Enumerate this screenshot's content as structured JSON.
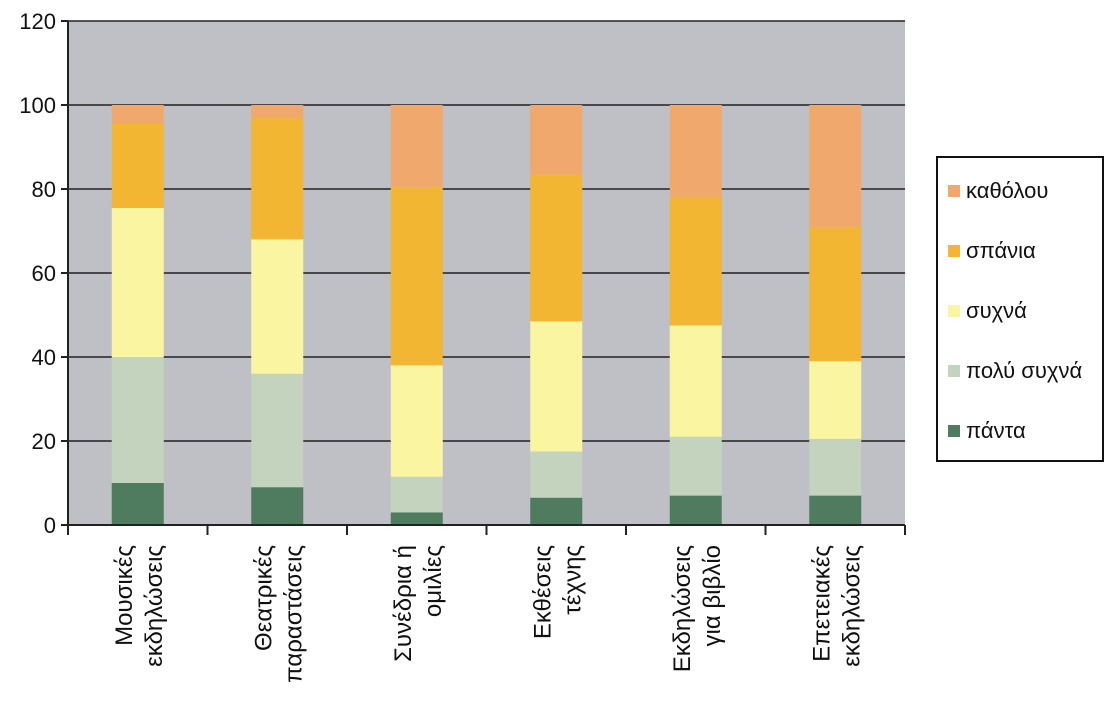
{
  "chart_data": {
    "type": "bar",
    "stacked": true,
    "categories": [
      [
        "Μουσικές",
        "εκδηλώσεις"
      ],
      [
        "Θεατρικές",
        "παραστάσεις"
      ],
      [
        "Συνέδρια ή",
        "ομιλίες"
      ],
      [
        "Εκθέσεις",
        "τέχνης"
      ],
      [
        "Εκδηλώσεις",
        "για βιβλίο"
      ],
      [
        "Επετειακές",
        "εκδηλώσεις"
      ]
    ],
    "series": [
      {
        "name": "πάντα",
        "color": "#4f7b5e",
        "values": [
          10,
          9,
          3,
          6.5,
          7,
          7
        ]
      },
      {
        "name": "πολύ συχνά",
        "color": "#c3d3bd",
        "values": [
          30,
          27,
          8.5,
          11,
          14,
          13.5
        ]
      },
      {
        "name": "συχνά",
        "color": "#faf5a0",
        "values": [
          35.5,
          32,
          26.5,
          31,
          26.5,
          18.5
        ]
      },
      {
        "name": "σπάνια",
        "color": "#f2b632",
        "values": [
          20,
          29,
          42.5,
          35,
          30.5,
          32
        ]
      },
      {
        "name": "καθόλου",
        "color": "#f1a86c",
        "values": [
          4.5,
          3,
          19.5,
          16.5,
          22,
          29
        ]
      }
    ],
    "ylim": [
      0,
      120
    ],
    "yticks": [
      "0",
      "20",
      "40",
      "60",
      "80",
      "100",
      "120"
    ],
    "grid": "horizontal",
    "legend": "right",
    "plot_background": "#bfbfc6"
  }
}
